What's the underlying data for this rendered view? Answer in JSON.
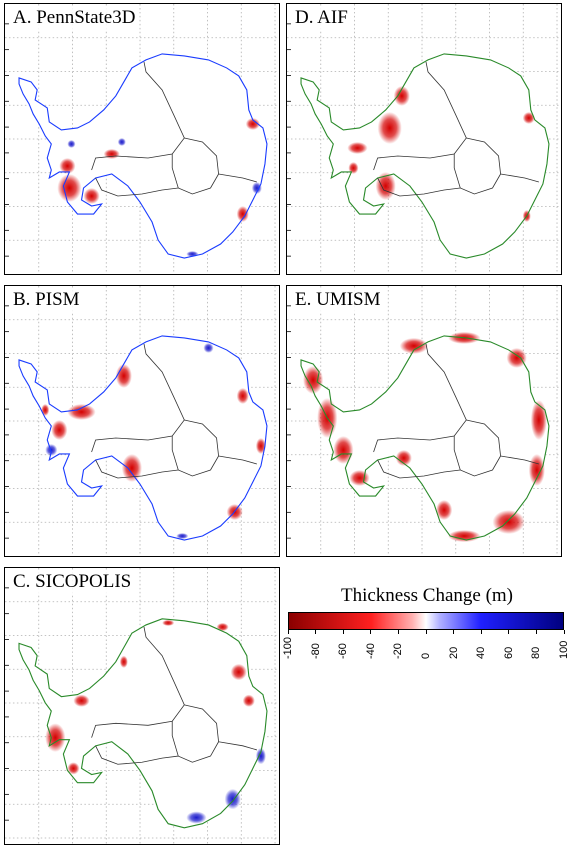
{
  "panels": [
    {
      "title": "A. PennState3D"
    },
    {
      "title": "D. AIF"
    },
    {
      "title": "B. PISM"
    },
    {
      "title": "E. UMISM"
    },
    {
      "title": "C. SICOPOLIS"
    }
  ],
  "colorbar": {
    "title": "Thickness Change (m)",
    "ticks": [
      "-100",
      "-80",
      "-60",
      "-40",
      "-20",
      "0",
      "20",
      "40",
      "60",
      "80",
      "100"
    ],
    "min_color": "#8b0000",
    "zero_color": "#ffffff",
    "max_color": "#00007f"
  }
}
